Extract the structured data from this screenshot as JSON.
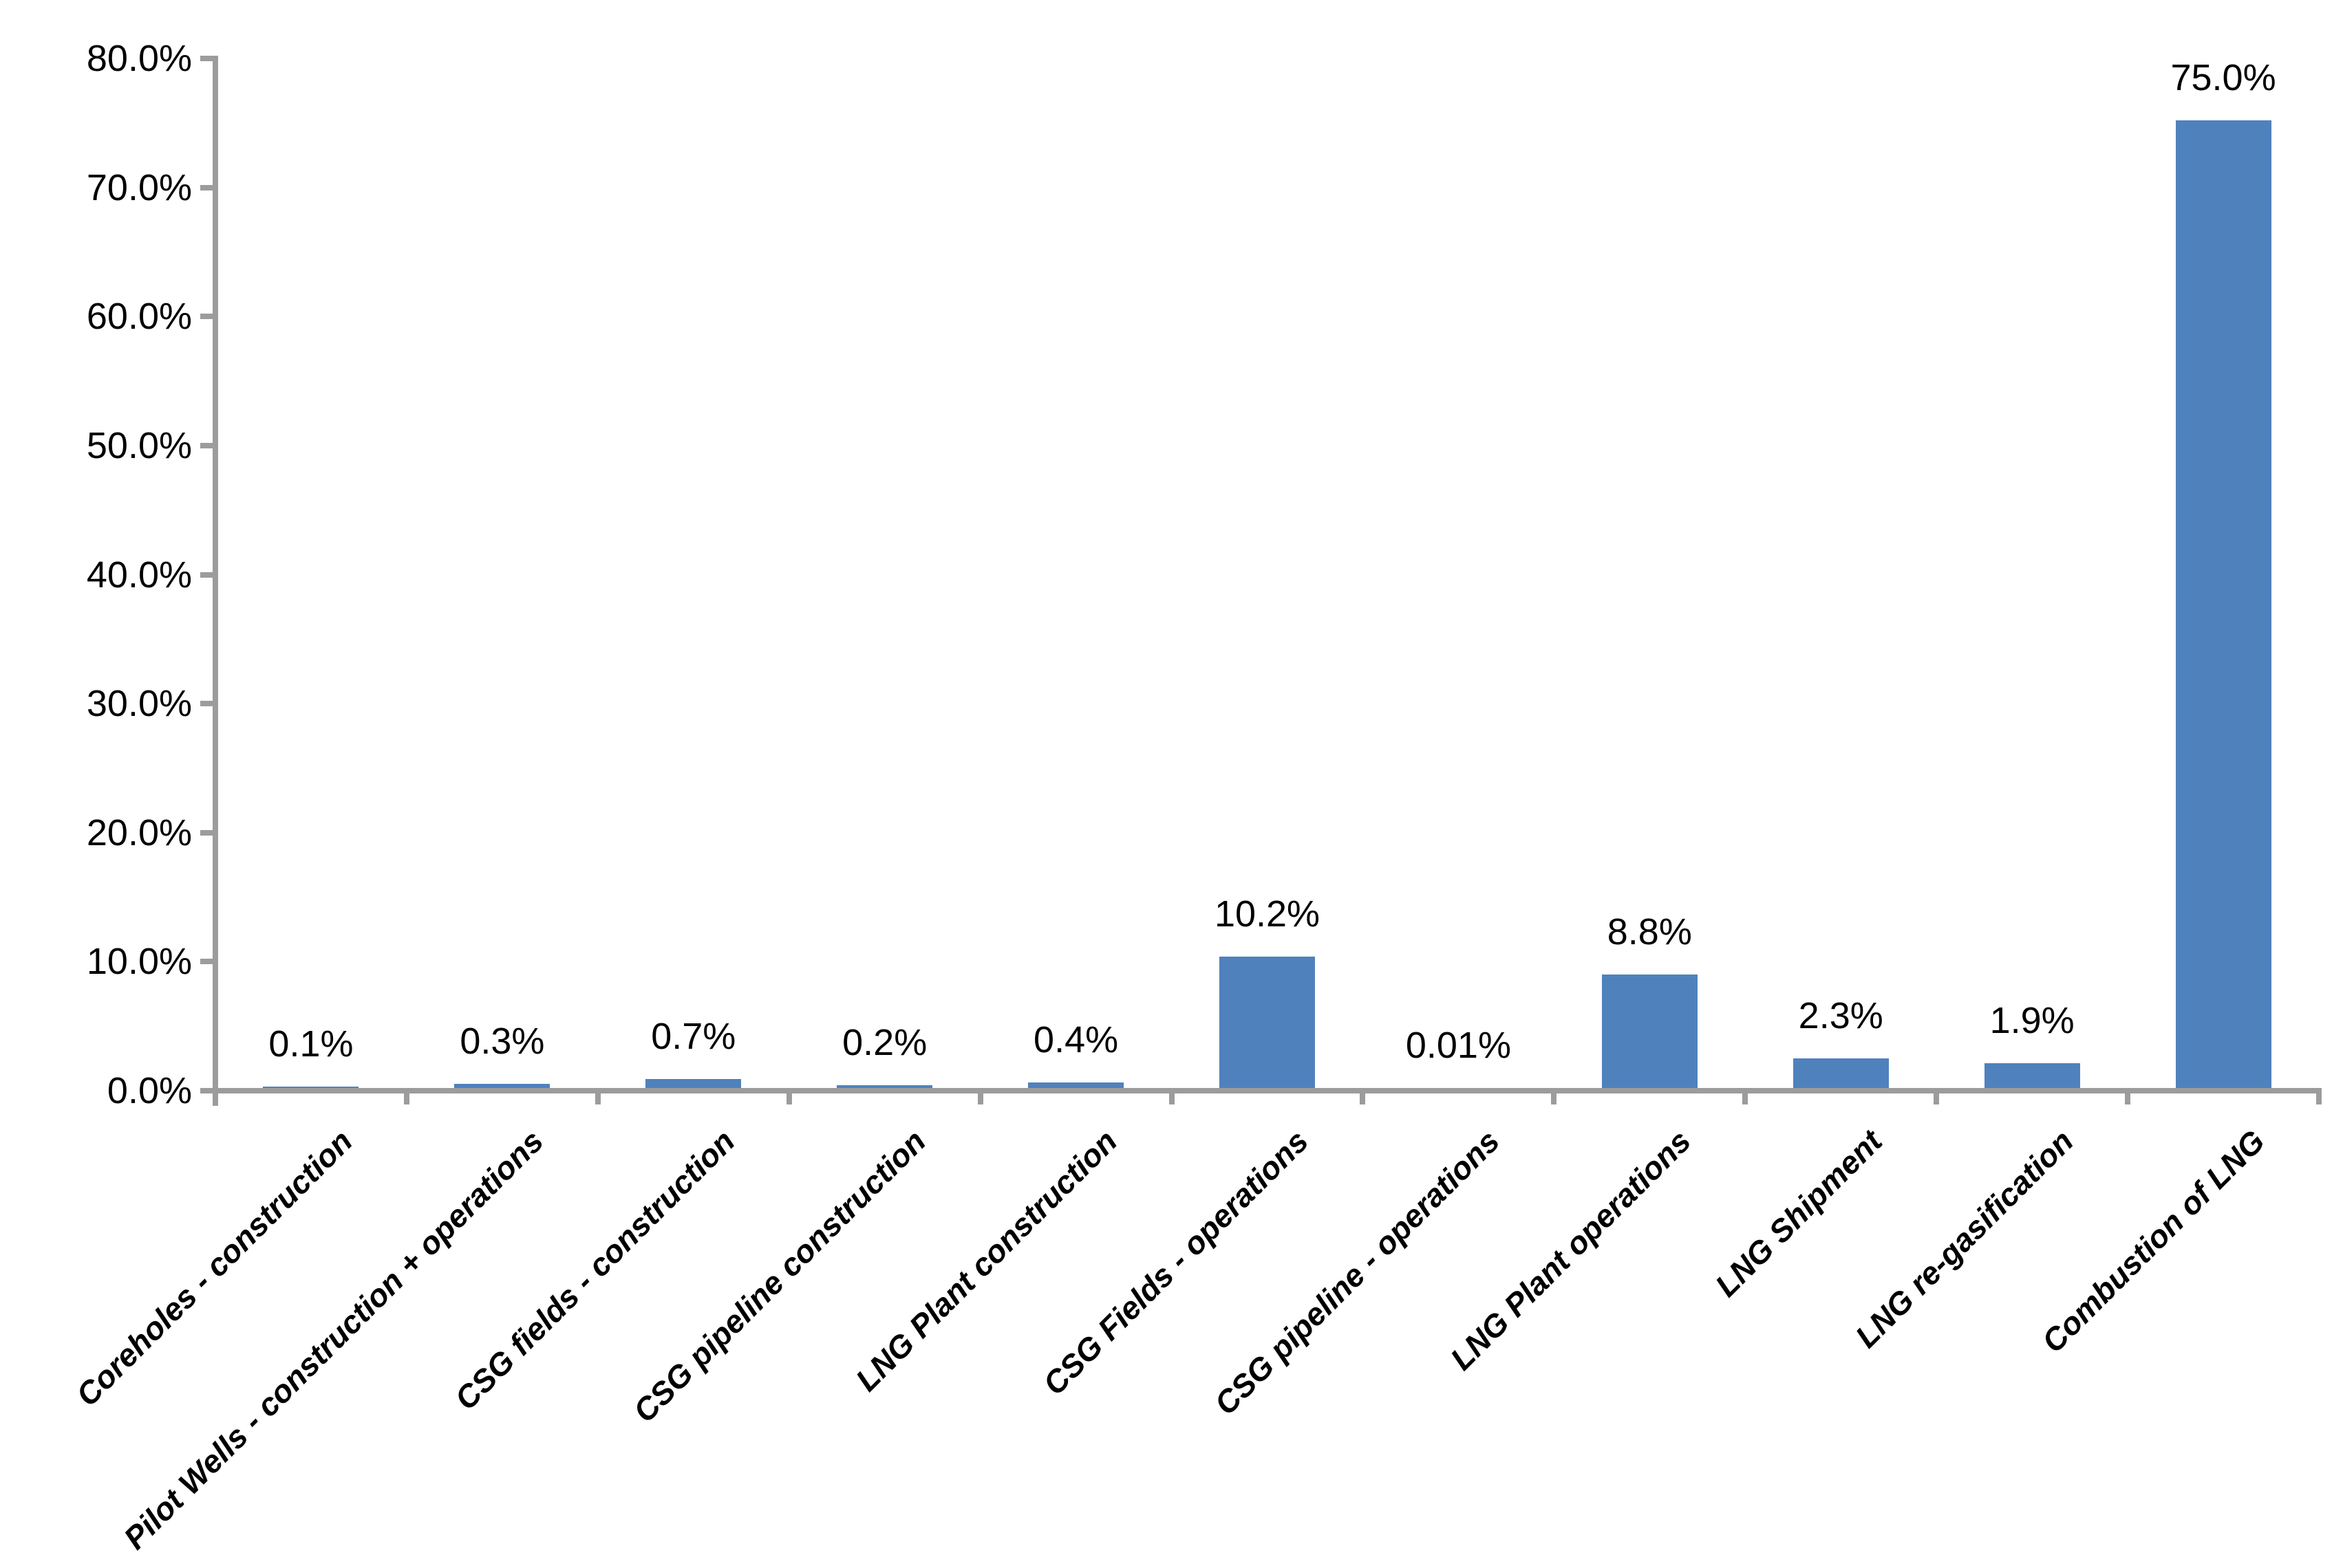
{
  "chart_data": {
    "type": "bar",
    "title": "",
    "xlabel": "",
    "ylabel": "",
    "categories": [
      "Coreholes - construction",
      "Pilot Wells - construction + operations",
      "CSG fields - construction",
      "CSG pipeline construction",
      "LNG Plant construction",
      "CSG Fields - operations",
      "CSG pipeline - operations",
      "LNG Plant operations",
      "LNG Shipment",
      "LNG re-gasification",
      "Combustion of LNG"
    ],
    "values": [
      0.1,
      0.3,
      0.7,
      0.2,
      0.4,
      10.2,
      0.01,
      8.8,
      2.3,
      1.9,
      75.0
    ],
    "value_labels": [
      "0.1%",
      "0.3%",
      "0.7%",
      "0.2%",
      "0.4%",
      "10.2%",
      "0.01%",
      "8.8%",
      "2.3%",
      "1.9%",
      "75.0%"
    ],
    "ylim": [
      0,
      80
    ],
    "ytick_step": 10,
    "ytick_labels": [
      "0.0%",
      "10.0%",
      "20.0%",
      "30.0%",
      "40.0%",
      "50.0%",
      "60.0%",
      "70.0%",
      "80.0%"
    ],
    "grid": false,
    "legend": null,
    "bar_color": "#4F81BD",
    "axis_color": "#9C9C9C",
    "text_color": "#000000"
  }
}
